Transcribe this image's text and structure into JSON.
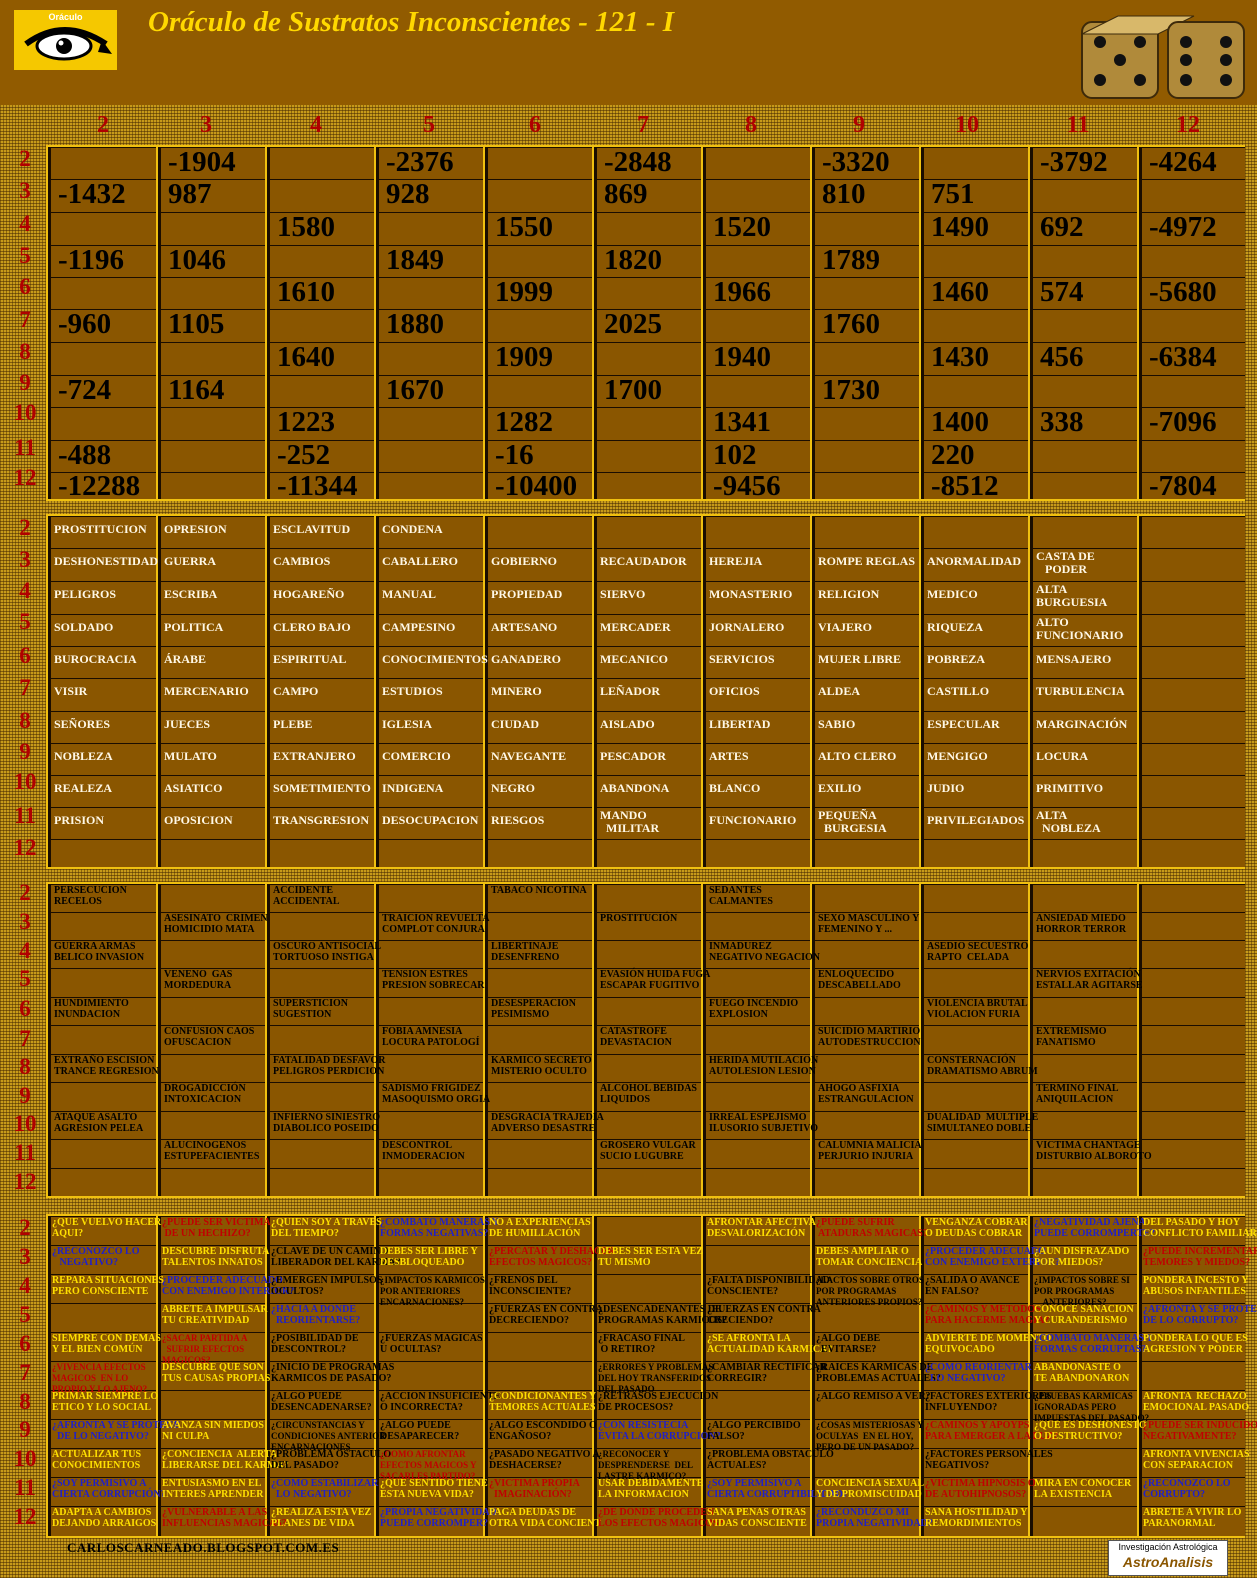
{
  "header": {
    "title": "Oráculo de Sustratos Inconscientes - 121 - I",
    "logo_text": "Oráculo",
    "logo_icon": "eye-icon",
    "dice_icon": "dice-icon"
  },
  "columns": [
    "2",
    "3",
    "4",
    "5",
    "6",
    "7",
    "8",
    "9",
    "10",
    "11",
    "12"
  ],
  "rows": [
    "2",
    "3",
    "4",
    "5",
    "6",
    "7",
    "8",
    "9",
    "10",
    "11",
    "12"
  ],
  "numbers": [
    [
      "",
      "-1432",
      "",
      "-1196",
      "",
      "-960",
      "",
      "-724",
      "",
      "-488",
      "-12288"
    ],
    [
      "-1904",
      "987",
      "",
      "1046",
      "",
      "1105",
      "",
      "1164",
      "",
      "",
      ""
    ],
    [
      "",
      "",
      "1580",
      "",
      "1610",
      "",
      "1640",
      "",
      "1223",
      "-252",
      "-11344"
    ],
    [
      "-2376",
      "928",
      "",
      "1849",
      "",
      "1880",
      "",
      "1670",
      "",
      "",
      ""
    ],
    [
      "",
      "",
      "1550",
      "",
      "1999",
      "",
      "1909",
      "",
      "1282",
      "-16",
      "-10400"
    ],
    [
      "-2848",
      "869",
      "",
      "1820",
      "",
      "2025",
      "",
      "1700",
      "",
      "",
      ""
    ],
    [
      "",
      "",
      "1520",
      "",
      "1966",
      "",
      "1940",
      "",
      "1341",
      "102",
      "-9456"
    ],
    [
      "-3320",
      "810",
      "",
      "1789",
      "",
      "1760",
      "",
      "1730",
      "",
      "",
      ""
    ],
    [
      "",
      "751",
      "1490",
      "",
      "1460",
      "",
      "1430",
      "",
      "1400",
      "220",
      "-8512"
    ],
    [
      "-3792",
      "",
      "692",
      "",
      "574",
      "",
      "456",
      "",
      "338",
      "",
      ""
    ],
    [
      "-4264",
      "",
      "-4972",
      "",
      "-5680",
      "",
      "-6384",
      "",
      "-7096",
      "",
      "-7804"
    ]
  ],
  "occupations": [
    [
      "PROSTITUCION",
      "DESHONESTIDAD",
      "PELIGROS",
      "SOLDADO",
      "BUROCRACIA",
      "VISIR",
      "SEÑORES",
      "NOBLEZA",
      "REALEZA",
      "PRISION",
      ""
    ],
    [
      "OPRESION",
      "GUERRA",
      "ESCRIBA",
      "POLITICA",
      "ÁRABE",
      "MERCENARIO",
      "JUECES",
      "MULATO",
      "ASIATICO",
      "OPOSICION",
      ""
    ],
    [
      "ESCLAVITUD",
      "CAMBIOS",
      "HOGAREÑO",
      "CLERO BAJO",
      "ESPIRITUAL",
      "CAMPO",
      "PLEBE",
      "EXTRANJERO",
      "SOMETIMIENTO",
      "TRANSGRESION",
      ""
    ],
    [
      "CONDENA",
      "CABALLERO",
      "MANUAL",
      "CAMPESINO",
      "CONOCIMIENTOS",
      "ESTUDIOS",
      "IGLESIA",
      "COMERCIO",
      "INDIGENA",
      "DESOCUPACION",
      ""
    ],
    [
      "",
      "GOBIERNO",
      "PROPIEDAD",
      "ARTESANO",
      "GANADERO",
      "MINERO",
      "CIUDAD",
      "NAVEGANTE",
      "NEGRO",
      "RIESGOS",
      ""
    ],
    [
      "",
      "RECAUDADOR",
      "SIERVO",
      "MERCADER",
      "MECANICO",
      "LEÑADOR",
      "AISLADO",
      "PESCADOR",
      "ABANDONA",
      "MANDO\n  MILITAR",
      ""
    ],
    [
      "",
      "HEREJIA",
      "MONASTERIO",
      "JORNALERO",
      "SERVICIOS",
      "OFICIOS",
      "LIBERTAD",
      "ARTES",
      "BLANCO",
      "FUNCIONARIO",
      ""
    ],
    [
      "",
      "ROMPE REGLAS",
      "RELIGION",
      "VIAJERO",
      "MUJER LIBRE",
      "ALDEA",
      "SABIO",
      "ALTO CLERO",
      "EXILIO",
      "PEQUEÑA\n  BURGESIA",
      ""
    ],
    [
      "",
      "ANORMALIDAD",
      "MEDICO",
      "RIQUEZA",
      "POBREZA",
      "CASTILLO",
      "ESPECULAR",
      "MENGIGO",
      "JUDIO",
      "PRIVILEGIADOS",
      ""
    ],
    [
      "",
      "CASTA DE\n   PODER",
      "ALTA\nBURGUESIA",
      "ALTO\nFUNCIONARIO",
      "MENSAJERO",
      "TURBULENCIA",
      "MARGINACIÓN",
      "LOCURA",
      "PRIMITIVO",
      "ALTA\n  NOBLEZA",
      ""
    ],
    [
      "",
      "",
      "",
      "",
      "",
      "",
      "",
      "",
      "",
      "",
      ""
    ]
  ],
  "events": [
    [
      "PERSECUCION\nRECELOS",
      "",
      "GUERRA ARMAS\nBELICO INVASION",
      "",
      "HUNDIMIENTO\nINUNDACION",
      "",
      "EXTRAÑO ESCISION\nTRANCE REGRESION",
      "",
      "ATAQUE ASALTO\nAGRESION PELEA",
      "",
      ""
    ],
    [
      "",
      "ASESINATO  CRIMEN\nHOMICIDIO MATA",
      "",
      "VENENO  GAS\nMORDEDURA",
      "",
      "CONFUSION CAOS\nOFUSCACION",
      "",
      "DROGADICCIÓN\nINTOXICACION",
      "",
      "ALUCINOGENOS\nESTUPEFACIENTES",
      ""
    ],
    [
      "ACCIDENTE\nACCIDENTAL",
      "",
      "OSCURO ANTISOCIAL\nTORTUOSO INSTIGA",
      "",
      "SUPERSTICION\nSUGESTION",
      "",
      "FATALIDAD DESFAVOR\nPELIGROS PERDICION",
      "",
      "INFIERNO SINIESTRO\nDIABOLICO POSEIDO",
      "",
      ""
    ],
    [
      "",
      "TRAICION REVUELTA\nCOMPLOT CONJURA",
      "",
      "TENSION ESTRES\nPRESION SOBRECAR",
      "",
      "FOBIA AMNESIA\nLOCURA PATOLOGÍ",
      "",
      "SADISMO FRIGIDEZ\nMASOQUISMO ORGIA",
      "",
      "DESCONTROL\nINMODERACION",
      ""
    ],
    [
      "TABACO NICOTINA",
      "",
      "LIBERTINAJE\nDESENFRENO",
      "",
      "DESESPERACION\nPESIMISMO",
      "",
      "KARMICO SECRETO\nMISTERIO OCULTO",
      "",
      "DESGRACIA TRAJEDIA\nADVERSO DESASTRE",
      "",
      ""
    ],
    [
      "",
      "PROSTITUCIÓN",
      "",
      "EVASIÓN HUIDA FUGA\nESCAPAR FUGITIVO",
      "",
      "CATASTROFE\nDEVASTACION",
      "",
      "ALCOHOL BEBIDAS\nLIQUIDOS",
      "",
      "GROSERO VULGAR\nSUCIO LUGUBRE",
      ""
    ],
    [
      "SEDANTES\nCALMANTES",
      "",
      "INMADUREZ\nNEGATIVO NEGACION",
      "",
      "FUEGO INCENDIO\nEXPLOSION",
      "",
      "HERIDA MUTILACION\nAUTOLESION LESION",
      "",
      "IRREAL ESPEJISMO\nILUSORIO SUBJETIVO",
      "",
      ""
    ],
    [
      "",
      "SEXO MASCULINO Y\nFEMENINO Y ...",
      "",
      "ENLOQUECIDO\nDESCABELLADO",
      "",
      "SUICIDIO MARTIRIO\nAUTODESTRUCCION",
      "",
      "AHOGO ASFIXIA\nESTRANGULACION",
      "",
      "CALUMNIA MALICIA\nPERJURIO INJURIA",
      ""
    ],
    [
      "",
      "",
      "ASEDIO SECUESTRO\nRAPTO  CELADA",
      "",
      "VIOLENCIA BRUTAL\nVIOLACION FURIA",
      "",
      "CONSTERNACIÓN\nDRAMATISMO ABRUM",
      "",
      "DUALIDAD  MULTIPLE\nSIMULTANEO DOBLE",
      "",
      ""
    ],
    [
      "",
      "ANSIEDAD MIEDO\nHORROR TERROR",
      "",
      "NERVIOS EXITACIÓN\nESTALLAR AGITARSE",
      "",
      "EXTREMISMO\nFANATISMO",
      "",
      "TERMINO FINAL\nANIQUILACION",
      "",
      "VICTIMA CHANTAGE\nDISTURBIO ALBOROTO",
      ""
    ],
    [
      "",
      "",
      "",
      "",
      "",
      "",
      "",
      "",
      "",
      "",
      ""
    ]
  ],
  "questions": [
    [
      [
        "¿QUE VUELVO HACER\nAQUI?",
        "y"
      ],
      [
        "¿RECONOZCO LO\n   NEGATIVO?",
        "b"
      ],
      [
        "REPARA SITUACIONES\nPERO CONSCIENTE",
        "y"
      ],
      [
        "",
        ""
      ],
      [
        "SIEMPRE CON DEMAS\nY EL BIEN COMÚN",
        "y"
      ],
      [
        "¿VIVENCIA EFECTOS\nMAGICOS  EN LO\nPROPIO Y LO AJENO?",
        "r"
      ],
      [
        "PRIMAR SIEMPRE LO\nETICO Y LO SOCIAL",
        "y"
      ],
      [
        "¿AFRONTA Y SE PROTEGE\n  DE LO NEGATIVO?",
        "b"
      ],
      [
        "ACTUALIZAR TUS\nCONOCIMIENTOS",
        "y"
      ],
      [
        "¿SOY PERMISIVO A\nCIERTA CORRUPCIÓN?",
        "b"
      ],
      [
        "ADAPTA A CAMBIOS\nDEJANDO ARRAIGOS",
        "y"
      ]
    ],
    [
      [
        "¿PUEDE SER VICTIMA\n DE UN HECHIZO?",
        "r"
      ],
      [
        "DESCUBRE DISFRUTA\nTALENTOS INNATOS",
        "y"
      ],
      [
        "¿PROCEDER ADECUADO\nCON ENEMIGO INTERIOR?",
        "b"
      ],
      [
        "ABRETE A IMPULSAR\nTU CREATIVIDAD",
        "y"
      ],
      [
        "¿SACAR PARTIDA A\n  SUFRIR EFECTOS\nMAGICOS?",
        "r"
      ],
      [
        "DESCUBRE QUE SON\nTUS CAUSAS PROPIAS",
        "y"
      ],
      [
        "",
        ""
      ],
      [
        "AVANZA SIN MIEDOS\nNI CULPA",
        "y"
      ],
      [
        "¿CONCIENCIA  ALERTA\nLIBERARSE DEL KARMA?",
        "y"
      ],
      [
        "ENTUSIASMO EN EL\nINTERES APRENDER",
        "y"
      ],
      [
        "¿VULNERABLE A LAS\nINFLUENCIAS MAGICAS?",
        "r"
      ]
    ],
    [
      [
        "¿QUIEN SOY A TRAVES\nDEL TIEMPO?",
        "y"
      ],
      [
        "¿CLAVE DE UN CAMINO\nLIBERADOR DEL KARMA?",
        "k"
      ],
      [
        "¿EMERGEN IMPULSOS\nOCULTOS?",
        "k"
      ],
      [
        "¿HACIA A DONDE\n  REORIENTARSE?",
        "b"
      ],
      [
        "¿POSIBILIDAD DE\nDESCONTROL?",
        "k"
      ],
      [
        "¿INICIO DE PROGRAMAS\nKARMICOS DE PASADO?",
        "k"
      ],
      [
        "¿ALGO PUEDE\nDESENCADENARSE?",
        "k"
      ],
      [
        "¿CIRCUNSTANCIAS Y\nCONDICIONES ANTERIOR\nENCARNACIONES",
        "k"
      ],
      [
        "¿PROBLEMA OSTACULO\nDEL PASADO?",
        "k"
      ],
      [
        "¿COMO ESTABILIZAR\n  LO NEGATIVO?",
        "b"
      ],
      [
        "¿REALIZA ESTA VEZ\nPLANES DE VIDA",
        "y"
      ]
    ],
    [
      [
        "¿COMBATO MANERAS Y\nFORMAS NEGATIVAS?",
        "b"
      ],
      [
        "DEBES SER LIBRE Y\nDESBLOQUEADO",
        "y"
      ],
      [
        "¿IMPACTOS KARMICOS\nPOR ANTERIORES\nENCARNACIONES?",
        "k"
      ],
      [
        "",
        ""
      ],
      [
        "¿FUERZAS MAGICAS\nU OCULTAS?",
        "k"
      ],
      [
        "",
        ""
      ],
      [
        "¿ACCION INSUFICIENTE\nO INCORRECTA?",
        "k"
      ],
      [
        "¿ALGO PUEDE\nDESAPARECER?",
        "k"
      ],
      [
        "¿COMO AFRONTAR\nEFECTOS MAGICOS Y\nSACARLES PARTIDO?",
        "r"
      ],
      [
        "¿QUE SENTIDO TIENE\nESTA NUEVA VIDA?",
        "y"
      ],
      [
        "¿PROPIA NEGATIVIDAD\nPUEDE CORROMPER?",
        "b"
      ]
    ],
    [
      [
        "NO A EXPERIENCIAS\nDE HUMILLACIÓN",
        "y"
      ],
      [
        "¿PERCATAR Y DESHACER\nEFECTOS MAGICOS?",
        "r"
      ],
      [
        "¿FRENOS DEL\nINCONSCIENTE?",
        "k"
      ],
      [
        "¿FUERZAS EN CONTRA\nDECRECIENDO?",
        "k"
      ],
      [
        "",
        ""
      ],
      [
        "",
        ""
      ],
      [
        "¿CONDICIONANTES Y\nTEMORES ACTUALES",
        "y"
      ],
      [
        "¿ALGO ESCONDIDO O\nENGAÑOSO?",
        "k"
      ],
      [
        "¿PASADO NEGATIVO A\nDESHACERSE?",
        "k"
      ],
      [
        "¿VICTIMA PROPIA\n  IMAGINACIÓN?",
        "r"
      ],
      [
        "PAGA DEUDAS DE\nOTRA VIDA CONCIENT",
        "y"
      ]
    ],
    [
      [
        "",
        ""
      ],
      [
        "DEBES SER ESTA VEZ\nTU MISMO",
        "y"
      ],
      [
        "",
        ""
      ],
      [
        "¿DESENCADENANTES DE\nPROGRAMAS KARMICOS?",
        "k"
      ],
      [
        "¿FRACASO FINAL\n O RETIRO?",
        "k"
      ],
      [
        "¿ERRORES Y PROBLEMAS\nDEL HOY TRANSFERIDOS\nDEL PASADO",
        "k"
      ],
      [
        "¿RETRASOS EJECUCION\nDE PROCESOS?",
        "k"
      ],
      [
        "¿CON RESISTECIA\nEVITA LA CORRUPCION?",
        "b"
      ],
      [
        "¿RECONOCER Y\nDESPRENDERSE  DEL\nLASTRE KARMICO?",
        "k"
      ],
      [
        "USAR DEBIDAMENTE\nLA INFORMACION",
        "y"
      ],
      [
        "¿DE DONDE PROCEDEN\nLOS EFECTOS MAGICOS?",
        "r"
      ]
    ],
    [
      [
        "AFRONTAR AFECTIVA\nDESVALORIZACIÓN",
        "y"
      ],
      [
        "",
        ""
      ],
      [
        "¿FALTA DISPONIBILIDAD\nCONSCIENTE?",
        "k"
      ],
      [
        "¿FUERZAS EN CONTRA\nCRECIENDO?",
        "k"
      ],
      [
        "¿SE AFRONTA LA\nACTUALIDAD KARMICA?",
        "y"
      ],
      [
        "¿CAMBIAR RECTIFICAR\nCORREGIR?",
        "k"
      ],
      [
        "",
        ""
      ],
      [
        "¿ALGO PERCIBIDO\nFALSO?",
        "k"
      ],
      [
        "¿PROBLEMA OBSTACULO\nACTUALES?",
        "k"
      ],
      [
        "¿SOY PERMISIVO A\nCIERTA CORRUPTIBILIDAD?",
        "b"
      ],
      [
        "SANA PENAS OTRAS\nVIDAS CONSCIENTE",
        "y"
      ]
    ],
    [
      [
        "¿PUEDE SUFRIR\n ATADURAS MAGICAS?",
        "r"
      ],
      [
        "DEBES AMPLIAR O\nTOMAR CONCIENCIA",
        "y"
      ],
      [
        "¿LACTOS SOBRE OTROS\nPOR PROGRAMAS\nANTERIORES PROPIOS?",
        "k"
      ],
      [
        "",
        ""
      ],
      [
        "¿ALGO DEBE\n  EVITARSE?",
        "k"
      ],
      [
        "¿RAICES KARMICAS DE\nPROBLEMAS ACTUALES?",
        "k"
      ],
      [
        "¿ALGO REMISO A VER?",
        "k"
      ],
      [
        "¿COSAS MISTERIOSAS Y\nOCULYAS  EN EL HOY,\nPERO DE UN PASADO?",
        "k"
      ],
      [
        "",
        ""
      ],
      [
        "CONCIENCIA SEXUAL\nY DE PROMISCUIDAD",
        "y"
      ],
      [
        "¿RECONDUZCO MI\nPROPIA NEGATIVIDAD?",
        "b"
      ]
    ],
    [
      [
        "VENGANZA COBRAR\nO DEUDAS COBRAR",
        "y"
      ],
      [
        "¿PROCEDER ADECUADO\nCON ENEMIGO EXTERIOR?",
        "b"
      ],
      [
        "¿SALIDA O AVANCE\nEN FALSO?",
        "k"
      ],
      [
        "¿CAMINOS Y METODOS\nPARA HACERME MAGIA?",
        "r"
      ],
      [
        "ADVIERTE DE MOMENTO\nEQUIVOCADO",
        "y"
      ],
      [
        "¿COMO REORIENTAR\n  LO NEGATIVO?",
        "b"
      ],
      [
        "¿FACTORES EXTERIORES\nINFLUYENDO?",
        "k"
      ],
      [
        "¿CAMINOS Y APOYPS\nPARA EMERGER A LA LUZ?",
        "r"
      ],
      [
        "¿FACTORES PERSONALES\nNEGATIVOS?",
        "k"
      ],
      [
        "¿VICTIMA HIPNOSIS O\nDE AUTOHIPNOSOS?",
        "r"
      ],
      [
        "SANA HOSTILIDAD Y\nREMORDIMIENTOS",
        "y"
      ]
    ],
    [
      [
        "¿NEGATIVIDAD AJENA\nPUEDE CORROMPERTE?",
        "b"
      ],
      [
        "¿AUN DISFRAZADO\nPOR MIEDOS?",
        "y"
      ],
      [
        "¿IMPACTOS SOBRE SI\nPOR PROGRAMAS\n    ANTERIORES?",
        "k"
      ],
      [
        "CONOCE SANACION\nY CURANDERISMO",
        "y"
      ],
      [
        "¿COMBATO MANERAS Y\nFORMAS CORRUPTAS?",
        "b"
      ],
      [
        "ABANDONASTE O\nTE ABANDONARON",
        "y"
      ],
      [
        "¿PRUEBAS KARMICAS\nIGNORADAS PERO\nIMPUESTAS DEL PASADO?",
        "k"
      ],
      [
        "¿QUE ES DESHONESTO\nO DESTRUCTIVO?",
        "y"
      ],
      [
        "",
        ""
      ],
      [
        "MIRA EN CONOCER\nLA EXISTENCIA",
        "y"
      ],
      [
        "",
        ""
      ]
    ],
    [
      [
        "DEL PASADO Y HOY\nCONFLICTO FAMILIAR",
        "y"
      ],
      [
        "¿PUEDE INCREMENTAR\nTEMORES Y MIEDOS?",
        "r"
      ],
      [
        "PONDERA INCESTO Y\nABUSOS INFANTILES",
        "y"
      ],
      [
        "¿AFRONTA Y SE PROTEGE\nDE LO CORRUPTO?",
        "b"
      ],
      [
        "PONDERA LO QUE ES\nAGRESION Y PODER",
        "y"
      ],
      [
        "",
        ""
      ],
      [
        "AFRONTA  RECHAZO\nEMOCIONAL PASADO",
        "y"
      ],
      [
        "¿PUEDE SER INDUCIDO\nNEGATIVAMENTE?",
        "r"
      ],
      [
        "AFRONTA VIVENCIAS\nCON SEPARACION",
        "y"
      ],
      [
        "¿RECONOZCO LO\nCORRUPTO?",
        "b"
      ],
      [
        "ABRETE A VIVIR LO\nPARANORMAL",
        "y"
      ]
    ]
  ],
  "question_colors": {
    "y": "#ffe000",
    "b": "#2020c8",
    "r": "#c00000",
    "k": "#000000"
  },
  "footer": {
    "site": "CARLOSCARNEADO.BLOGSPOT.COM.ES",
    "badge_top": "Investigación  Astrológica",
    "badge_bottom": "AstroAnalisis"
  }
}
